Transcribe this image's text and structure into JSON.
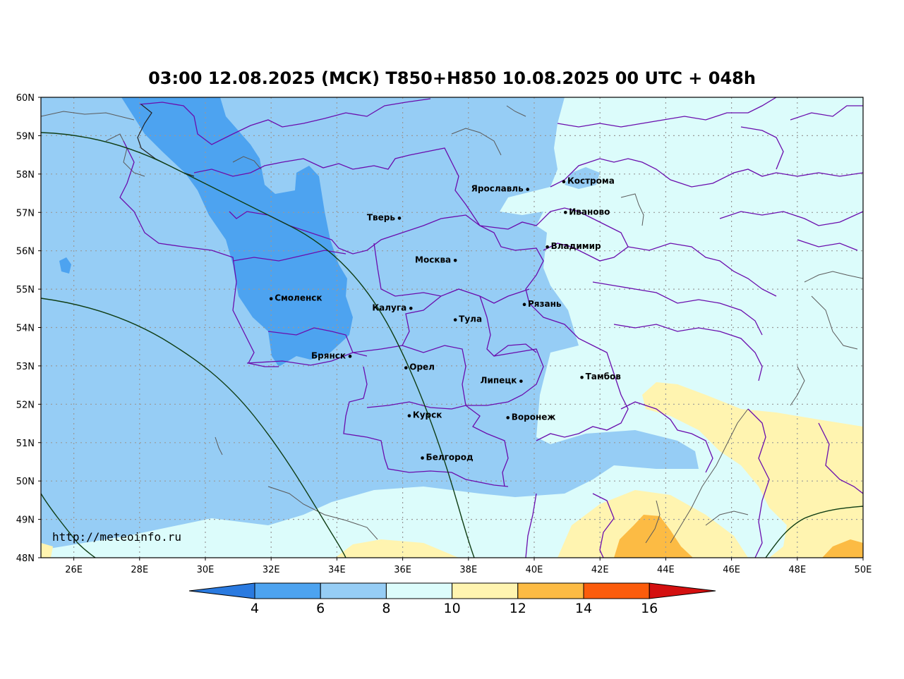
{
  "title": "03:00 12.08.2025 (МСК) T850+H850 10.08.2025 00 UTC + 048h",
  "source_url": "http://meteoinfo.ru",
  "lat_labels": [
    "60N",
    "59N",
    "58N",
    "57N",
    "56N",
    "55N",
    "54N",
    "53N",
    "52N",
    "51N",
    "50N",
    "49N",
    "48N"
  ],
  "lon_labels": [
    "26E",
    "28E",
    "30E",
    "32E",
    "34E",
    "36E",
    "38E",
    "40E",
    "42E",
    "44E",
    "46E",
    "48E",
    "50E"
  ],
  "cities": [
    {
      "name": "Ярославль",
      "lon": 39.8,
      "lat": 57.6,
      "side": "left"
    },
    {
      "name": "Кострома",
      "lon": 40.9,
      "lat": 57.8,
      "side": "right"
    },
    {
      "name": "Иваново",
      "lon": 40.95,
      "lat": 57.0,
      "side": "right"
    },
    {
      "name": "Тверь",
      "lon": 35.9,
      "lat": 56.85,
      "side": "left"
    },
    {
      "name": "Владимир",
      "lon": 40.4,
      "lat": 56.1,
      "side": "right"
    },
    {
      "name": "Москва",
      "lon": 37.6,
      "lat": 55.75,
      "side": "left"
    },
    {
      "name": "Смоленск",
      "lon": 32.0,
      "lat": 54.75,
      "side": "right"
    },
    {
      "name": "Калуга",
      "lon": 36.25,
      "lat": 54.5,
      "side": "left"
    },
    {
      "name": "Рязань",
      "lon": 39.7,
      "lat": 54.6,
      "side": "right"
    },
    {
      "name": "Тула",
      "lon": 37.6,
      "lat": 54.2,
      "side": "right"
    },
    {
      "name": "Брянск",
      "lon": 34.4,
      "lat": 53.25,
      "side": "left"
    },
    {
      "name": "Орел",
      "lon": 36.1,
      "lat": 52.95,
      "side": "right"
    },
    {
      "name": "Липецк",
      "lon": 39.6,
      "lat": 52.6,
      "side": "left"
    },
    {
      "name": "Тамбов",
      "lon": 41.45,
      "lat": 52.7,
      "side": "right"
    },
    {
      "name": "Курск",
      "lon": 36.2,
      "lat": 51.7,
      "side": "right"
    },
    {
      "name": "Воронеж",
      "lon": 39.2,
      "lat": 51.65,
      "side": "right"
    },
    {
      "name": "Белгород",
      "lon": 36.6,
      "lat": 50.6,
      "side": "right"
    }
  ],
  "legend": {
    "ticks": [
      "4",
      "6",
      "8",
      "10",
      "12",
      "14",
      "16"
    ],
    "colors": [
      "#2a7ae0",
      "#4da3f0",
      "#96cdf5",
      "#dcfcfb",
      "#fff4b0",
      "#fcbb44",
      "#fb5c0c",
      "#d41010"
    ]
  },
  "colors": {
    "background": "#ffffff",
    "region_border": "#6a0dad",
    "river": "#5a5a5a",
    "contour": "#0f3d14",
    "grid": "#999999"
  }
}
